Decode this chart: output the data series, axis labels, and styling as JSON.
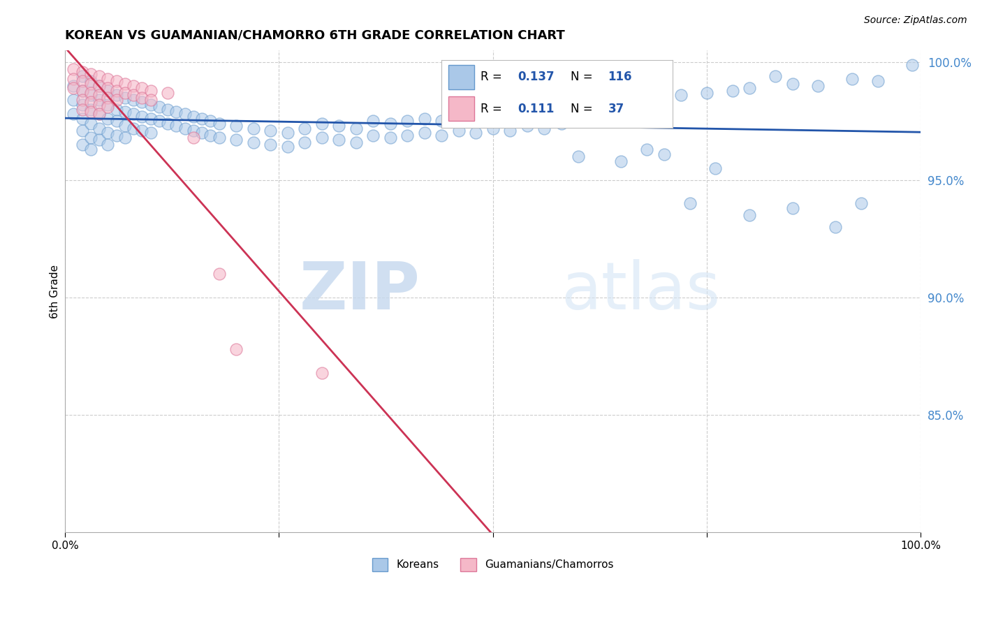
{
  "title": "KOREAN VS GUAMANIAN/CHAMORRO 6TH GRADE CORRELATION CHART",
  "source_text": "Source: ZipAtlas.com",
  "ylabel": "6th Grade",
  "xlim": [
    0.0,
    1.0
  ],
  "ylim": [
    0.8,
    1.005
  ],
  "ytick_positions": [
    0.85,
    0.9,
    0.95,
    1.0
  ],
  "ytick_labels": [
    "85.0%",
    "90.0%",
    "95.0%",
    "100.0%"
  ],
  "xtick_positions": [
    0.0,
    0.25,
    0.5,
    0.75,
    1.0
  ],
  "xtick_labels": [
    "0.0%",
    "",
    "",
    "",
    "100.0%"
  ],
  "korean_color": "#aac8e8",
  "guam_color": "#f5b8c8",
  "korean_edge": "#6699cc",
  "guam_edge": "#dd7799",
  "trend_korean_color": "#2255aa",
  "trend_guam_color": "#cc3355",
  "R_korean": 0.137,
  "N_korean": 116,
  "R_guam": 0.111,
  "N_guam": 37,
  "watermark_zip": "ZIP",
  "watermark_atlas": "atlas",
  "korean_points": [
    [
      0.01,
      0.99
    ],
    [
      0.01,
      0.984
    ],
    [
      0.01,
      0.978
    ],
    [
      0.02,
      0.994
    ],
    [
      0.02,
      0.988
    ],
    [
      0.02,
      0.982
    ],
    [
      0.02,
      0.976
    ],
    [
      0.02,
      0.971
    ],
    [
      0.02,
      0.965
    ],
    [
      0.03,
      0.992
    ],
    [
      0.03,
      0.986
    ],
    [
      0.03,
      0.98
    ],
    [
      0.03,
      0.974
    ],
    [
      0.03,
      0.968
    ],
    [
      0.03,
      0.963
    ],
    [
      0.04,
      0.99
    ],
    [
      0.04,
      0.984
    ],
    [
      0.04,
      0.978
    ],
    [
      0.04,
      0.972
    ],
    [
      0.04,
      0.967
    ],
    [
      0.05,
      0.988
    ],
    [
      0.05,
      0.982
    ],
    [
      0.05,
      0.976
    ],
    [
      0.05,
      0.97
    ],
    [
      0.05,
      0.965
    ],
    [
      0.06,
      0.986
    ],
    [
      0.06,
      0.98
    ],
    [
      0.06,
      0.975
    ],
    [
      0.06,
      0.969
    ],
    [
      0.07,
      0.985
    ],
    [
      0.07,
      0.979
    ],
    [
      0.07,
      0.973
    ],
    [
      0.07,
      0.968
    ],
    [
      0.08,
      0.984
    ],
    [
      0.08,
      0.978
    ],
    [
      0.08,
      0.972
    ],
    [
      0.09,
      0.983
    ],
    [
      0.09,
      0.977
    ],
    [
      0.09,
      0.971
    ],
    [
      0.1,
      0.982
    ],
    [
      0.1,
      0.976
    ],
    [
      0.1,
      0.97
    ],
    [
      0.11,
      0.981
    ],
    [
      0.11,
      0.975
    ],
    [
      0.12,
      0.98
    ],
    [
      0.12,
      0.974
    ],
    [
      0.13,
      0.979
    ],
    [
      0.13,
      0.973
    ],
    [
      0.14,
      0.978
    ],
    [
      0.14,
      0.972
    ],
    [
      0.15,
      0.977
    ],
    [
      0.15,
      0.971
    ],
    [
      0.16,
      0.976
    ],
    [
      0.16,
      0.97
    ],
    [
      0.17,
      0.975
    ],
    [
      0.17,
      0.969
    ],
    [
      0.18,
      0.974
    ],
    [
      0.18,
      0.968
    ],
    [
      0.2,
      0.973
    ],
    [
      0.2,
      0.967
    ],
    [
      0.22,
      0.972
    ],
    [
      0.22,
      0.966
    ],
    [
      0.24,
      0.971
    ],
    [
      0.24,
      0.965
    ],
    [
      0.26,
      0.97
    ],
    [
      0.26,
      0.964
    ],
    [
      0.28,
      0.972
    ],
    [
      0.28,
      0.966
    ],
    [
      0.3,
      0.974
    ],
    [
      0.3,
      0.968
    ],
    [
      0.32,
      0.973
    ],
    [
      0.32,
      0.967
    ],
    [
      0.34,
      0.972
    ],
    [
      0.34,
      0.966
    ],
    [
      0.36,
      0.975
    ],
    [
      0.36,
      0.969
    ],
    [
      0.38,
      0.974
    ],
    [
      0.38,
      0.968
    ],
    [
      0.4,
      0.975
    ],
    [
      0.4,
      0.969
    ],
    [
      0.42,
      0.976
    ],
    [
      0.42,
      0.97
    ],
    [
      0.44,
      0.975
    ],
    [
      0.44,
      0.969
    ],
    [
      0.46,
      0.977
    ],
    [
      0.46,
      0.971
    ],
    [
      0.48,
      0.976
    ],
    [
      0.48,
      0.97
    ],
    [
      0.5,
      0.978
    ],
    [
      0.5,
      0.972
    ],
    [
      0.52,
      0.977
    ],
    [
      0.52,
      0.971
    ],
    [
      0.54,
      0.979
    ],
    [
      0.54,
      0.973
    ],
    [
      0.56,
      0.978
    ],
    [
      0.56,
      0.972
    ],
    [
      0.58,
      0.98
    ],
    [
      0.58,
      0.974
    ],
    [
      0.6,
      0.981
    ],
    [
      0.6,
      0.975
    ],
    [
      0.62,
      0.982
    ],
    [
      0.62,
      0.976
    ],
    [
      0.65,
      0.984
    ],
    [
      0.68,
      0.983
    ],
    [
      0.7,
      0.985
    ],
    [
      0.72,
      0.986
    ],
    [
      0.75,
      0.987
    ],
    [
      0.78,
      0.988
    ],
    [
      0.8,
      0.989
    ],
    [
      0.83,
      0.994
    ],
    [
      0.85,
      0.991
    ],
    [
      0.88,
      0.99
    ],
    [
      0.92,
      0.993
    ],
    [
      0.95,
      0.992
    ],
    [
      0.99,
      0.999
    ],
    [
      0.6,
      0.96
    ],
    [
      0.65,
      0.958
    ],
    [
      0.68,
      0.963
    ],
    [
      0.7,
      0.961
    ],
    [
      0.73,
      0.94
    ],
    [
      0.76,
      0.955
    ],
    [
      0.8,
      0.935
    ],
    [
      0.85,
      0.938
    ],
    [
      0.9,
      0.93
    ],
    [
      0.93,
      0.94
    ]
  ],
  "guam_points": [
    [
      0.01,
      0.997
    ],
    [
      0.01,
      0.993
    ],
    [
      0.01,
      0.989
    ],
    [
      0.02,
      0.996
    ],
    [
      0.02,
      0.992
    ],
    [
      0.02,
      0.988
    ],
    [
      0.02,
      0.984
    ],
    [
      0.02,
      0.98
    ],
    [
      0.03,
      0.995
    ],
    [
      0.03,
      0.991
    ],
    [
      0.03,
      0.987
    ],
    [
      0.03,
      0.983
    ],
    [
      0.03,
      0.979
    ],
    [
      0.04,
      0.994
    ],
    [
      0.04,
      0.99
    ],
    [
      0.04,
      0.986
    ],
    [
      0.04,
      0.982
    ],
    [
      0.04,
      0.978
    ],
    [
      0.05,
      0.993
    ],
    [
      0.05,
      0.989
    ],
    [
      0.05,
      0.985
    ],
    [
      0.05,
      0.981
    ],
    [
      0.06,
      0.992
    ],
    [
      0.06,
      0.988
    ],
    [
      0.06,
      0.984
    ],
    [
      0.07,
      0.991
    ],
    [
      0.07,
      0.987
    ],
    [
      0.08,
      0.99
    ],
    [
      0.08,
      0.986
    ],
    [
      0.09,
      0.989
    ],
    [
      0.09,
      0.985
    ],
    [
      0.1,
      0.988
    ],
    [
      0.1,
      0.984
    ],
    [
      0.12,
      0.987
    ],
    [
      0.15,
      0.968
    ],
    [
      0.18,
      0.91
    ],
    [
      0.2,
      0.878
    ],
    [
      0.3,
      0.868
    ]
  ]
}
